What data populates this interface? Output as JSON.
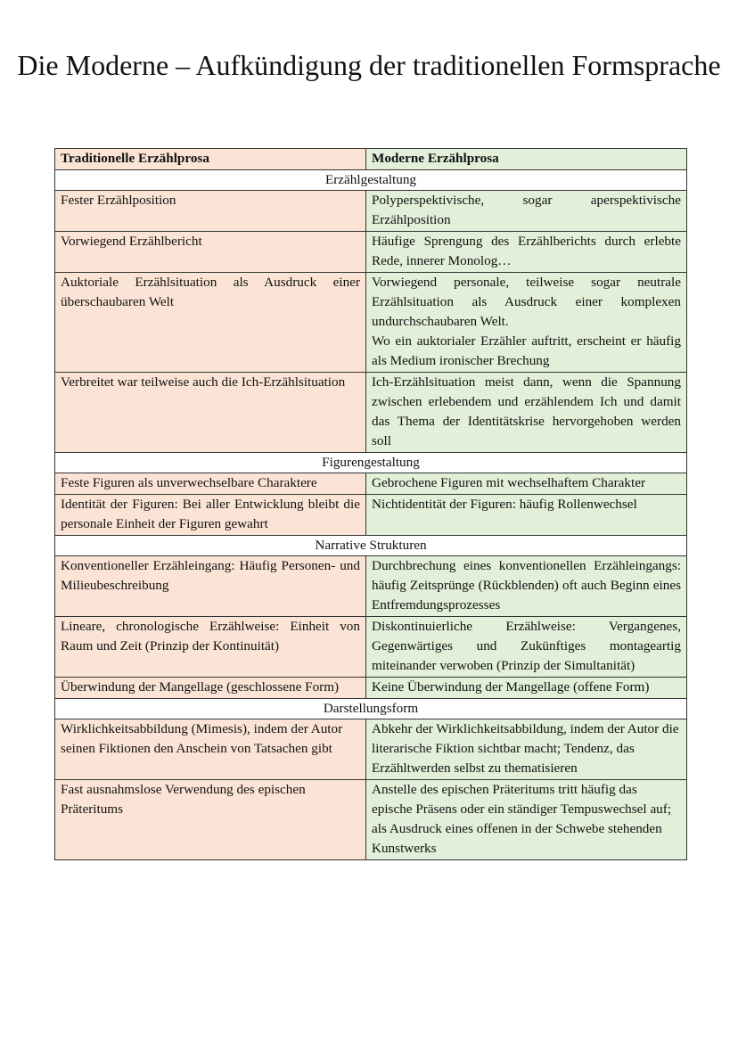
{
  "title": "Die Moderne – Aufkündigung der traditionellen Formsprache",
  "table": {
    "headers": [
      "Traditionelle Erzählprosa",
      "Moderne Erzählprosa"
    ],
    "colors": {
      "traditional": "#fbe4d5",
      "modern": "#e2efd9"
    },
    "sections": [
      {
        "label": "Erzählgestaltung",
        "rows": [
          [
            "Fester Erzählposition",
            "Polyperspektivische, sogar aperspektivische Erzählposition"
          ],
          [
            "Vorwiegend Erzählbericht",
            "Häufige Sprengung des Erzählberichts durch erlebte Rede, innerer Monolog…"
          ],
          [
            "Auktoriale Erzählsituation als Ausdruck einer überschaubaren Welt",
            "Vorwiegend personale, teilweise sogar neutrale Erzählsituation als Ausdruck einer komplexen undurchschaubaren Welt.\nWo ein auktorialer Erzähler auftritt, erscheint er häufig als Medium ironischer Brechung"
          ],
          [
            "Verbreitet war teilweise auch die Ich-Erzählsituation",
            "Ich-Erzählsituation meist dann, wenn die Spannung zwischen erlebendem und erzählendem Ich und damit das Thema der Identitätskrise hervorgehoben werden soll"
          ]
        ]
      },
      {
        "label": "Figurengestaltung",
        "rows": [
          [
            "Feste Figuren als unverwechselbare Charaktere",
            "Gebrochene Figuren mit wechselhaftem Charakter"
          ],
          [
            "Identität der Figuren: Bei aller Entwicklung bleibt die personale Einheit der Figuren gewahrt",
            "Nichtidentität der Figuren: häufig Rollenwechsel"
          ]
        ]
      },
      {
        "label": "Narrative Strukturen",
        "rows": [
          [
            "Konventioneller Erzähleingang: Häufig Personen- und Milieubeschreibung",
            "Durchbrechung eines konventionellen Erzähleingangs: häufig Zeitsprünge (Rückblenden) oft auch Beginn eines Entfremdungsprozesses"
          ],
          [
            "Lineare, chronologische Erzählweise: Einheit von Raum und Zeit (Prinzip der Kontinuität)",
            "Diskontinuierliche Erzählweise: Vergangenes, Gegenwärtiges und Zukünftiges montageartig miteinander verwoben (Prinzip der Simultanität)"
          ],
          [
            "Überwindung der Mangellage (geschlossene Form)",
            "Keine Überwindung der Mangellage (offene Form)"
          ]
        ]
      },
      {
        "label": "Darstellungsform",
        "rows": [
          [
            "Wirklichkeitsabbildung (Mimesis), indem der Autor seinen Fiktionen den Anschein von Tatsachen gibt",
            "Abkehr der Wirklichkeitsabbildung, indem der Autor die literarische Fiktion sichtbar macht; Tendenz, das Erzähltwerden selbst zu thematisieren"
          ],
          [
            "Fast ausnahmslose Verwendung des epischen Präteritums",
            "Anstelle des epischen Präteritums tritt häufig das epische Präsens oder ein ständiger Tempuswechsel auf; als Ausdruck eines offenen in der Schwebe stehenden Kunstwerks"
          ]
        ]
      }
    ]
  }
}
